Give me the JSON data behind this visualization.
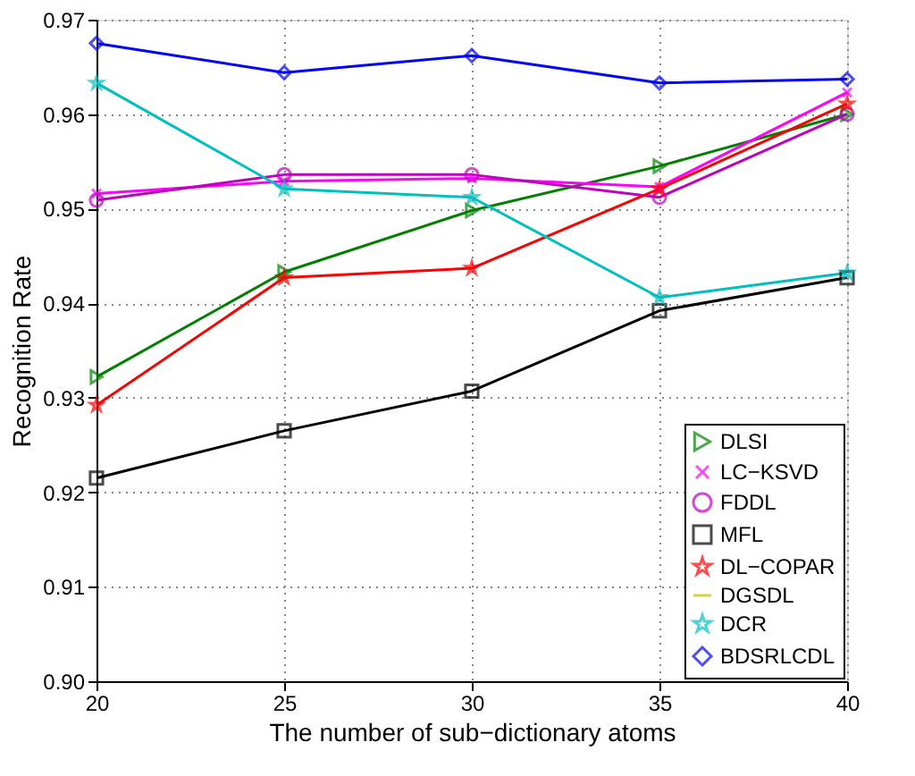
{
  "chart_data": {
    "type": "line",
    "xlabel": "The number of sub−dictionary atoms",
    "ylabel": "Recognition Rate",
    "x": [
      20,
      25,
      30,
      35,
      40
    ],
    "series": [
      {
        "name": "DLSI",
        "color": "#008000",
        "marker": "triangle",
        "values": [
          0.9322,
          0.9433,
          0.9498,
          0.9545,
          0.96
        ]
      },
      {
        "name": "LC−KSVD",
        "color": "#ff00ff",
        "marker": "cross",
        "values": [
          0.9516,
          0.9529,
          0.9532,
          0.9523,
          0.9623
        ]
      },
      {
        "name": "FDDL",
        "color": "#bf00bf",
        "marker": "circle",
        "values": [
          0.9509,
          0.9536,
          0.9536,
          0.9512,
          0.96
        ]
      },
      {
        "name": "MFL",
        "color": "#000000",
        "marker": "square",
        "values": [
          0.9215,
          0.9265,
          0.9307,
          0.9392,
          0.9427
        ]
      },
      {
        "name": "DL−COPAR",
        "color": "#ff0000",
        "marker": "star",
        "values": [
          0.9292,
          0.9427,
          0.9437,
          0.9521,
          0.9611
        ]
      },
      {
        "name": "DGSDL",
        "color": "#bfbf00",
        "marker": "none",
        "values": [
          null,
          null,
          null,
          null,
          null
        ]
      },
      {
        "name": "DCR",
        "color": "#00bfbf",
        "marker": "star",
        "values": [
          0.9633,
          0.9521,
          0.9512,
          0.9406,
          0.9432
        ]
      },
      {
        "name": "BDSRLCDL",
        "color": "#0000ff",
        "marker": "diamond",
        "values": [
          0.9675,
          0.9644,
          0.9662,
          0.9633,
          0.9637
        ]
      }
    ],
    "xlim": [
      20,
      40
    ],
    "xticks": [
      20,
      25,
      30,
      35,
      40
    ],
    "ylim": [
      0.9,
      0.97
    ],
    "yticks": [
      {
        "value": 0.9,
        "label": "0.90"
      },
      0.91,
      0.92,
      0.93,
      0.94,
      0.95,
      0.96,
      0.97
    ],
    "grid": true,
    "legend": "bottom right",
    "line_style": "solid"
  }
}
